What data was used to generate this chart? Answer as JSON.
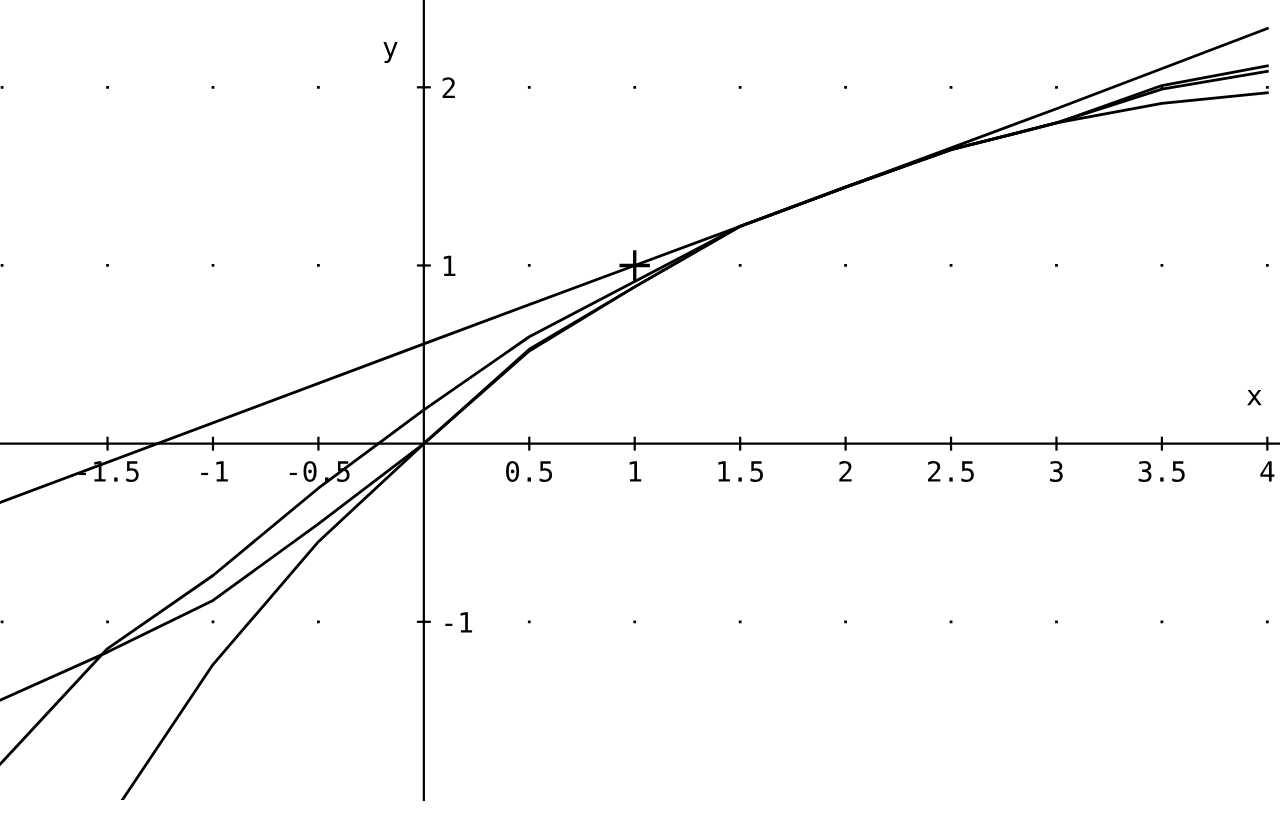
{
  "chart_data": {
    "type": "line",
    "xlabel": "x",
    "ylabel": "y",
    "xlim": [
      -2.01,
      4.06
    ],
    "ylim": [
      -2.0,
      2.49
    ],
    "xticks": [
      -1.5,
      -1,
      -0.5,
      0.5,
      1,
      1.5,
      2,
      2.5,
      3,
      3.5,
      4
    ],
    "yticks": [
      -1,
      1,
      2
    ],
    "grid": true,
    "series": [
      {
        "color": "#000000",
        "x": [
          -2.01,
          0,
          1,
          2,
          3,
          4
        ],
        "values": [
          -0.33,
          0.56,
          1.0,
          1.44,
          1.88,
          2.33
        ]
      },
      {
        "color": "#000000",
        "x": [
          -2.01,
          -1.5,
          -1,
          -0.5,
          0,
          0.5,
          1,
          1.5,
          2,
          2.5,
          3,
          3.5,
          4
        ],
        "values": [
          -1.44,
          -1.17,
          -0.88,
          -0.45,
          0.0,
          0.53,
          0.88,
          1.22,
          1.44,
          1.65,
          1.8,
          1.91,
          1.97
        ]
      },
      {
        "color": "#000000",
        "x": [
          -2.01,
          -1.5,
          -1,
          -0.5,
          0,
          0.5,
          1,
          1.5,
          2,
          2.5,
          3,
          3.5,
          4
        ],
        "values": [
          -1.8,
          -1.15,
          -0.74,
          -0.25,
          0.19,
          0.6,
          0.91,
          1.22,
          1.44,
          1.65,
          1.8,
          2.01,
          2.12
        ]
      },
      {
        "color": "#000000",
        "x": [
          -1.43,
          -1,
          -0.5,
          0,
          0.5,
          1,
          1.5,
          2,
          2.5,
          3,
          3.5,
          4
        ],
        "values": [
          -2.0,
          -1.24,
          -0.55,
          0.0,
          0.52,
          0.88,
          1.22,
          1.44,
          1.65,
          1.8,
          1.99,
          2.09
        ]
      },
      {
        "type": "scatter",
        "marker": "cross",
        "color": "#000000",
        "x": [
          1
        ],
        "values": [
          1.0
        ]
      }
    ]
  }
}
